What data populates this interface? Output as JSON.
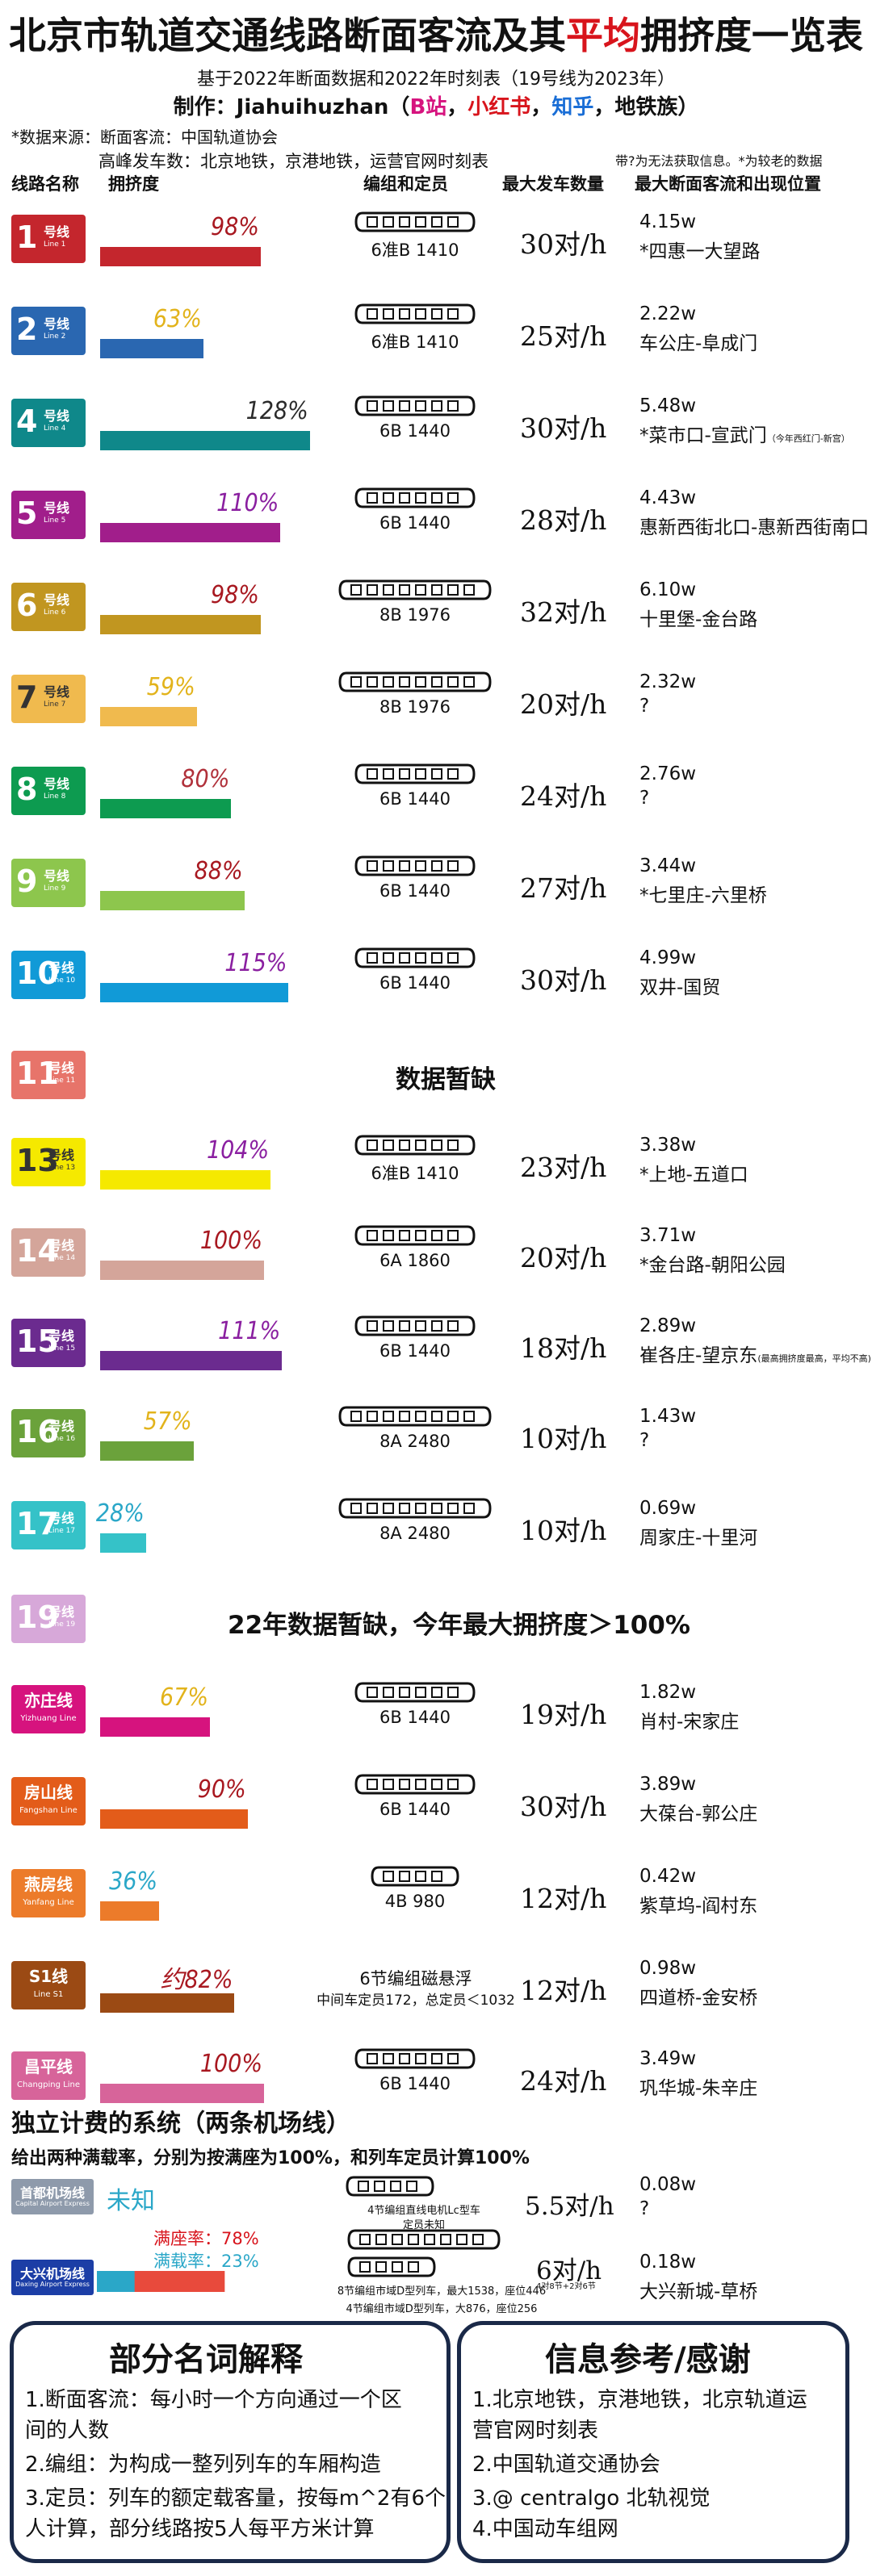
{
  "header": {
    "title_a": "北京市轨道交通线路断面客流及其",
    "title_b": "平均",
    "title_c": "拥挤度一览表",
    "subtitle": "基于2022年断面数据和2022年时刻表（19号线为2023年）",
    "maker_a": "制作：Jiahuihuzhan（",
    "maker_b": "B站",
    "maker_c": "，",
    "maker_d": "小红书",
    "maker_e": "，",
    "maker_f": "知乎",
    "maker_g": "，地铁族）",
    "source1": "*数据来源：断面客流：中国轨道协会",
    "source2": "高峰发车数：北京地铁，京港地铁，运营官网时刻表",
    "note": "带?为无法获取信息。*为较老的数据"
  },
  "columns": {
    "line": "线路名称",
    "crowd": "拥挤度",
    "formation": "编组和定员",
    "freq": "最大发车数量",
    "flow": "最大断面客流和出现位置"
  },
  "colors": {
    "line1": "#c4262d",
    "line2": "#2a67b1",
    "line4": "#0f888a",
    "line5": "#a11e8b",
    "line6": "#c19620",
    "line7": "#f0ba4e",
    "line8": "#0d9b50",
    "line9": "#8dc64d",
    "line10": "#119ad7",
    "line11": "#e7746a",
    "line13": "#f5e900",
    "line14": "#d4a59a",
    "line15": "#6b2b8f",
    "line16": "#6ba23b",
    "line17": "#35c2c8",
    "line19": "#d7a8d9",
    "yizhuang": "#d6137e",
    "fangshan": "#e35c1a",
    "yanfang": "#ec7b2a",
    "s1": "#9b4a14",
    "changping": "#d7649a",
    "capital": "#8e9aab",
    "daxing": "#1c3ea6",
    "red_accent": "#d8141c",
    "zhihu_blue": "#1a6ed6",
    "bstation": "#d6137e"
  },
  "chart_data": {
    "type": "bar",
    "title": "北京市轨道交通线路断面客流及其平均拥挤度一览表",
    "value_label": "拥挤度",
    "unit": "%",
    "rows": [
      {
        "key": "l1",
        "num": "1",
        "hao": "号线",
        "eng": "Line 1",
        "color": "#c4262d",
        "value": 98,
        "label": "98%",
        "lblcolor": "#a81820",
        "formation": "6准B 1410",
        "cars": 6,
        "freq": "30对/h",
        "flow": "4.15w",
        "loc": "*四惠一大望路"
      },
      {
        "key": "l2",
        "num": "2",
        "hao": "号线",
        "eng": "Line 2",
        "color": "#2a67b1",
        "value": 63,
        "label": "63%",
        "lblcolor": "#e2b31b",
        "formation": "6准B 1410",
        "cars": 6,
        "freq": "25对/h",
        "flow": "2.22w",
        "loc": "车公庄-阜成门"
      },
      {
        "key": "l4",
        "num": "4",
        "hao": "号线",
        "eng": "Line 4",
        "color": "#0f888a",
        "value": 128,
        "label": "128%",
        "lblcolor": "#2b2b2b",
        "formation": "6B 1440",
        "cars": 6,
        "freq": "30对/h",
        "flow": "5.48w",
        "loc": "*菜市口-宣武门",
        "locnote": "（今年西红门-新宫）"
      },
      {
        "key": "l5",
        "num": "5",
        "hao": "号线",
        "eng": "Line 5",
        "color": "#a11e8b",
        "value": 110,
        "label": "110%",
        "lblcolor": "#8a1fa0",
        "formation": "6B 1440",
        "cars": 6,
        "freq": "28对/h",
        "flow": "4.43w",
        "loc": "惠新西街北口-惠新西街南口"
      },
      {
        "key": "l6",
        "num": "6",
        "hao": "号线",
        "eng": "Line 6",
        "color": "#c19620",
        "value": 98,
        "label": "98%",
        "lblcolor": "#a81820",
        "formation": "8B 1976",
        "cars": 8,
        "freq": "32对/h",
        "flow": "6.10w",
        "loc": "十里堡-金台路"
      },
      {
        "key": "l7",
        "num": "7",
        "hao": "号线",
        "eng": "Line 7",
        "color": "#f0ba4e",
        "value": 59,
        "label": "59%",
        "lblcolor": "#e2b31b",
        "formation": "8B 1976",
        "cars": 8,
        "freq": "20对/h",
        "flow": "2.32w",
        "loc": "?"
      },
      {
        "key": "l8",
        "num": "8",
        "hao": "号线",
        "eng": "Line 8",
        "color": "#0d9b50",
        "value": 80,
        "label": "80%",
        "lblcolor": "#b0303a",
        "formation": "6B 1440",
        "cars": 6,
        "freq": "24对/h",
        "flow": "2.76w",
        "loc": "?"
      },
      {
        "key": "l9",
        "num": "9",
        "hao": "号线",
        "eng": "Line 9",
        "color": "#8dc64d",
        "value": 88,
        "label": "88%",
        "lblcolor": "#a81820",
        "formation": "6B 1440",
        "cars": 6,
        "freq": "27对/h",
        "flow": "3.44w",
        "loc": "*七里庄-六里桥"
      },
      {
        "key": "l10",
        "num": "10",
        "hao": "号线",
        "eng": "Line 10",
        "color": "#119ad7",
        "value": 115,
        "label": "115%",
        "lblcolor": "#8a1fa0",
        "formation": "6B 1440",
        "cars": 6,
        "freq": "30对/h",
        "flow": "4.99w",
        "loc": "双井-国贸"
      },
      {
        "key": "l11",
        "num": "11",
        "hao": "号线",
        "eng": "Line 11",
        "color": "#e7746a",
        "value": null,
        "nodata": "数据暂缺"
      },
      {
        "key": "l13",
        "num": "13",
        "hao": "号线",
        "eng": "Line 13",
        "color": "#f5e900",
        "value": 104,
        "label": "104%",
        "lblcolor": "#8a1fa0",
        "formation": "6准B 1410",
        "cars": 6,
        "freq": "23对/h",
        "flow": "3.38w",
        "loc": "*上地-五道口"
      },
      {
        "key": "l14",
        "num": "14",
        "hao": "号线",
        "eng": "Line 14",
        "color": "#d4a59a",
        "value": 100,
        "label": "100%",
        "lblcolor": "#a81820",
        "formation": "6A 1860",
        "cars": 6,
        "freq": "20对/h",
        "flow": "3.71w",
        "loc": "*金台路-朝阳公园"
      },
      {
        "key": "l15",
        "num": "15",
        "hao": "号线",
        "eng": "Line 15",
        "color": "#6b2b8f",
        "value": 111,
        "label": "111%",
        "lblcolor": "#8a1fa0",
        "formation": "6B 1440",
        "cars": 6,
        "freq": "18对/h",
        "flow": "2.89w",
        "loc": "崔各庄-望京东",
        "locnote": "(最高拥挤度最高，平均不高)"
      },
      {
        "key": "l16",
        "num": "16",
        "hao": "号线",
        "eng": "Line 16",
        "color": "#6ba23b",
        "value": 57,
        "label": "57%",
        "lblcolor": "#e2b31b",
        "formation": "8A 2480",
        "cars": 8,
        "freq": "10对/h",
        "flow": "1.43w",
        "loc": "?"
      },
      {
        "key": "l17",
        "num": "17",
        "hao": "号线",
        "eng": "Line 17",
        "color": "#35c2c8",
        "value": 28,
        "label": "28%",
        "lblcolor": "#2aa7c8",
        "formation": "8A 2480",
        "cars": 8,
        "freq": "10对/h",
        "flow": "0.69w",
        "loc": "周家庄-十里河"
      },
      {
        "key": "l19",
        "num": "19",
        "hao": "号线",
        "eng": "Line 19",
        "color": "#d7a8d9",
        "value": null,
        "nodata": "22年数据暂缺，今年最大拥挤度＞100%"
      },
      {
        "key": "yz",
        "cn": "亦庄线",
        "eng": "Yizhuang Line",
        "color": "#d6137e",
        "value": 67,
        "label": "67%",
        "lblcolor": "#e2b31b",
        "formation": "6B 1440",
        "cars": 6,
        "freq": "19对/h",
        "flow": "1.82w",
        "loc": "肖村-宋家庄"
      },
      {
        "key": "fs",
        "cn": "房山线",
        "eng": "Fangshan Line",
        "color": "#e35c1a",
        "value": 90,
        "label": "90%",
        "lblcolor": "#a81820",
        "formation": "6B 1440",
        "cars": 6,
        "freq": "30对/h",
        "flow": "3.89w",
        "loc": "大葆台-郭公庄"
      },
      {
        "key": "yf",
        "cn": "燕房线",
        "eng": "Yanfang Line",
        "color": "#ec7b2a",
        "value": 36,
        "label": "36%",
        "lblcolor": "#2aa7c8",
        "formation": "4B 980",
        "cars": 4,
        "freq": "12对/h",
        "flow": "0.42w",
        "loc": "紫草坞-阎村东"
      },
      {
        "key": "s1",
        "cn": "S1线",
        "eng": "Line S1",
        "color": "#9b4a14",
        "value": 82,
        "label": "约82%",
        "lblcolor": "#a81820",
        "formation": "6节编组磁悬浮",
        "formation2": "中间车定员172，总定员＜1032",
        "cars": 0,
        "freq": "12对/h",
        "flow": "0.98w",
        "loc": "四道桥-金安桥"
      },
      {
        "key": "cp",
        "cn": "昌平线",
        "eng": "Changping Line",
        "color": "#d7649a",
        "value": 100,
        "label": "100%",
        "lblcolor": "#a81820",
        "formation": "6B 1440",
        "cars": 6,
        "freq": "24对/h",
        "flow": "3.49w",
        "loc": "巩华城-朱辛庄"
      }
    ],
    "airport": {
      "title": "独立计费的系统（两条机场线）",
      "desc": "给出两种满载率，分别为按满座为100%，和列车定员计算100%",
      "capital": {
        "cn": "首都机场线",
        "eng": "Capital Airport Express",
        "color": "#8e9aab",
        "value_label": "未知",
        "formation": "4节编组直线电机Lc型车",
        "formation2": "定员未知",
        "freq": "5.5对/h",
        "flow": "0.08w",
        "loc": "?"
      },
      "daxing": {
        "cn": "大兴机场线",
        "eng": "Daxing Airport Express",
        "color": "#1c3ea6",
        "seat_label": "满座率：",
        "seat_value": 78,
        "seat_text": "78%",
        "load_label": "满载率：",
        "load_value": 23,
        "load_text": "23%",
        "formation": "8节编组市域D型列车，最大1538，座位446",
        "formation3": "4节编组市域D型列车，大876，座位256",
        "freq": "6对/h",
        "freqnote": "4对8节+2对6节",
        "flow": "0.18w",
        "loc": "大兴新城-草桥"
      }
    }
  },
  "terms": {
    "title": "部分名词解释",
    "l1": "1.断面客流：每小时一个方向通过一个区",
    "l2": "间的人数",
    "l3": "2.编组：为构成一整列列车的车厢构造",
    "l4": "3.定员：列车的额定载客量，按每m^2有6个",
    "l5": "人计算，部分线路按5人每平方米计算"
  },
  "refs": {
    "title": "信息参考/感谢",
    "l1": "1.北京地铁，京港地铁，北京轨道运",
    "l2": "营官网时刻表",
    "l3": "2.中国轨道交通协会",
    "l4": "3.@ centralgo 北轨视觉",
    "l5": "4.中国动车组网"
  }
}
